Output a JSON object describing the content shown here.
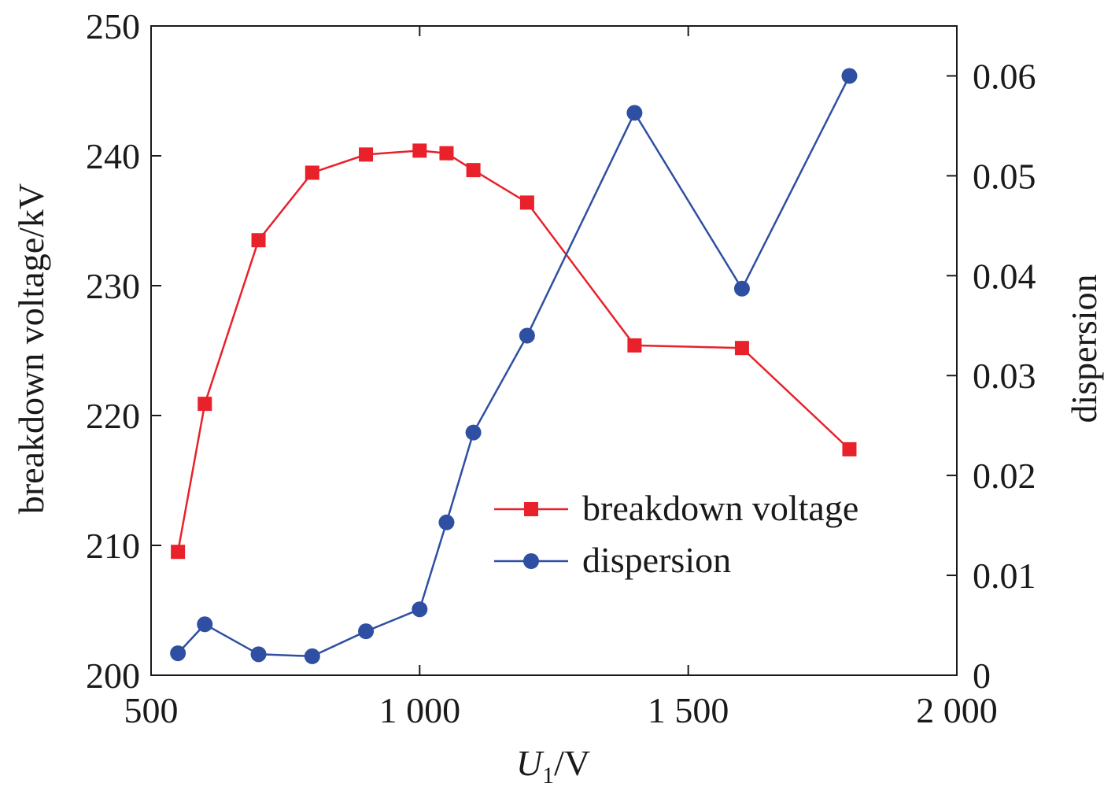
{
  "chart_data": {
    "type": "line",
    "title": "",
    "xlabel": "U1/V",
    "xlabel_parts": {
      "main": "U",
      "sub": "1",
      "rest": "/V"
    },
    "ylabel": "breakdown voltage/kV",
    "y2label": "dispersion",
    "xlim": [
      500,
      2000
    ],
    "ylim": [
      200,
      250
    ],
    "y2lim": [
      0,
      0.065
    ],
    "x_ticks": [
      500,
      1000,
      1500,
      2000
    ],
    "x_tick_labels": [
      "500",
      "1 000",
      "1 500",
      "2 000"
    ],
    "y_ticks": [
      200,
      210,
      220,
      230,
      240,
      250
    ],
    "y_tick_labels": [
      "200",
      "210",
      "220",
      "230",
      "240",
      "250"
    ],
    "y2_ticks": [
      0,
      0.01,
      0.02,
      0.03,
      0.04,
      0.05,
      0.06
    ],
    "y2_tick_labels": [
      "0",
      "0.01",
      "0.02",
      "0.03",
      "0.04",
      "0.05",
      "0.06"
    ],
    "legend_position": "center-right",
    "series": [
      {
        "name": "breakdown voltage",
        "axis": "left",
        "marker": "square",
        "color": "#e8212b",
        "x": [
          550,
          600,
          700,
          800,
          900,
          1000,
          1050,
          1100,
          1200,
          1400,
          1600,
          1800
        ],
        "values": [
          209.5,
          220.9,
          233.5,
          238.7,
          240.1,
          240.4,
          240.2,
          238.9,
          236.4,
          225.4,
          225.2,
          217.4
        ]
      },
      {
        "name": "dispersion",
        "axis": "right",
        "marker": "circle",
        "color": "#2f4fa2",
        "x": [
          550,
          600,
          700,
          800,
          900,
          1000,
          1050,
          1100,
          1200,
          1400,
          1600,
          1800
        ],
        "values": [
          0.0022,
          0.0051,
          0.0021,
          0.0019,
          0.0044,
          0.0066,
          0.0153,
          0.0243,
          0.034,
          0.0563,
          0.0387,
          0.06
        ]
      }
    ]
  }
}
